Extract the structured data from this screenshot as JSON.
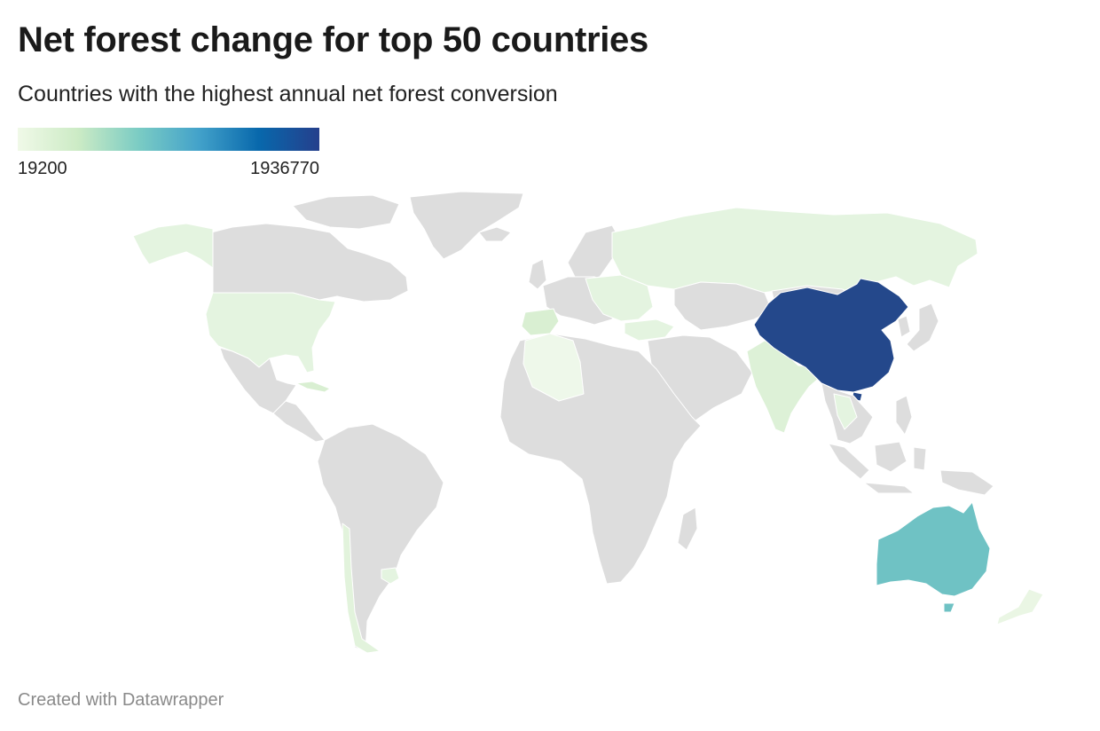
{
  "header": {
    "title": "Net forest change for top 50 countries",
    "subtitle": "Countries with the highest annual net forest conversion"
  },
  "legend": {
    "min_label": "19200",
    "max_label": "1936770",
    "min_value": 19200,
    "max_value": 1936770,
    "colors": [
      "#f0f9e8",
      "#ccebc5",
      "#7bccc4",
      "#43a2ca",
      "#0868ac",
      "#253f8c"
    ]
  },
  "map": {
    "projection": "robinson-like",
    "no_data_color": "#dddddd",
    "highlighted_regions": [
      {
        "region": "China",
        "level": "highest",
        "color": "#24488b"
      },
      {
        "region": "Australia",
        "level": "mid",
        "color": "#6fc2c4"
      },
      {
        "region": "Russia",
        "level": "low",
        "color": "#e4f4e0"
      },
      {
        "region": "United States",
        "level": "low",
        "color": "#e4f4e0"
      },
      {
        "region": "India",
        "level": "low",
        "color": "#ddf1d7"
      },
      {
        "region": "Chile",
        "level": "low",
        "color": "#e2f3dc"
      },
      {
        "region": "Algeria",
        "level": "low",
        "color": "#eef8ea"
      },
      {
        "region": "Spain",
        "level": "low",
        "color": "#d9efd2"
      },
      {
        "region": "New Zealand",
        "level": "low",
        "color": "#eaf6e4"
      }
    ]
  },
  "footer": {
    "credit": "Created with Datawrapper"
  }
}
